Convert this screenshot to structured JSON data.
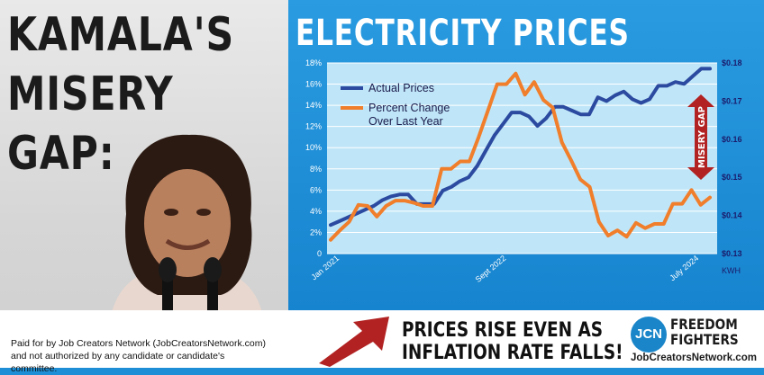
{
  "headline": {
    "line1": "KAMALA'S",
    "line2": "MISERY",
    "line3": "GAP:"
  },
  "tagline": {
    "line1": "PRICES RISE EVEN AS",
    "line2": "INFLATION RATE FALLS!"
  },
  "disclaimer": "Paid for by Job Creators Network (JobCreatorsNetwork.com) and not authorized by any candidate or candidate's committee.",
  "logo": {
    "initials": "JCN",
    "name_line1": "FREEDOM",
    "name_line2": "FIGHTERS",
    "url": "JobCreatorsNetwork.com"
  },
  "colors": {
    "actual": "#2b4aa0",
    "percent": "#f07e2b",
    "arrow": "#b22222",
    "plot_bg": "#bfe6f8"
  },
  "chart_data": {
    "type": "line",
    "title": "ELECTRICITY PRICES",
    "annotation": "MISERY GAP",
    "x_ticks": [
      "Jan 2021",
      "Sept 2022",
      "July 2024"
    ],
    "y_left": {
      "ticks": [
        "0",
        "2%",
        "4%",
        "6%",
        "8%",
        "10%",
        "12%",
        "14%",
        "16%",
        "18%"
      ],
      "range": [
        0,
        18
      ]
    },
    "y_right": {
      "ticks": [
        "$0.13",
        "$0.14",
        "$0.15",
        "$0.16",
        "$0.17",
        "$0.18"
      ],
      "range": [
        0.13,
        0.18
      ],
      "unit": "KWH"
    },
    "legend_position": "top-left",
    "grid": true,
    "series": [
      {
        "name": "Actual Prices",
        "axis": "right",
        "values": [
          0.1375,
          0.1385,
          0.1395,
          0.1405,
          0.1415,
          0.1425,
          0.144,
          0.145,
          0.1455,
          0.1455,
          0.143,
          0.143,
          0.143,
          0.1465,
          0.1475,
          0.149,
          0.15,
          0.153,
          0.157,
          0.161,
          0.164,
          0.167,
          0.167,
          0.166,
          0.1635,
          0.1655,
          0.1685,
          0.1685,
          0.1675,
          0.1665,
          0.1665,
          0.171,
          0.17,
          0.1715,
          0.1725,
          0.1705,
          0.1695,
          0.1705,
          0.174,
          0.174,
          0.175,
          0.1745,
          0.1765,
          0.1785,
          0.1785
        ]
      },
      {
        "name": "Percent Change Over Last Year",
        "axis": "left",
        "values": [
          1.3,
          2.2,
          3.0,
          4.6,
          4.5,
          3.5,
          4.5,
          5.0,
          5.0,
          4.8,
          4.5,
          4.5,
          8.0,
          8.0,
          8.7,
          8.7,
          11.0,
          13.5,
          16.0,
          16.0,
          17.0,
          15.0,
          16.2,
          14.5,
          13.8,
          10.5,
          8.8,
          7.0,
          6.3,
          3.0,
          1.7,
          2.2,
          1.6,
          2.9,
          2.4,
          2.8,
          2.8,
          4.7,
          4.7,
          6.0,
          4.6,
          5.3
        ]
      }
    ]
  }
}
